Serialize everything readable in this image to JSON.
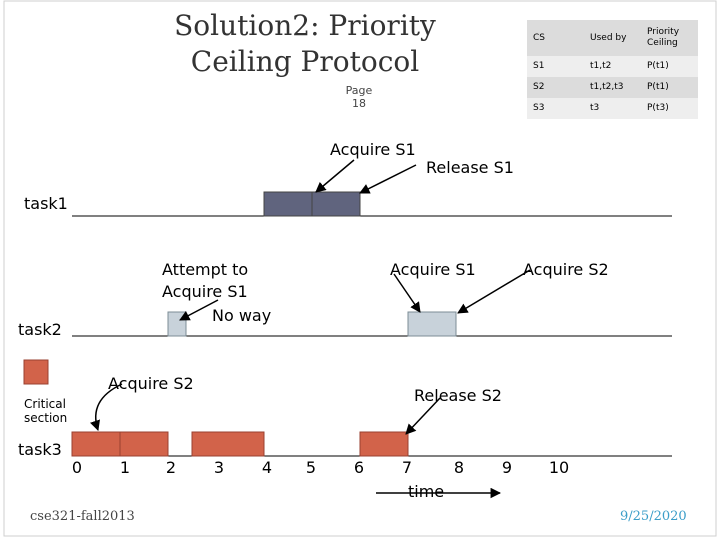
{
  "slide": {
    "title_line1": "Solution2: Priority",
    "title_line2": "Ceiling Protocol",
    "page_label": "Page",
    "page_number": "18",
    "footer_left": "cse321-fall2013",
    "footer_right": "9/25/2020"
  },
  "ceiling_table": {
    "headers": [
      "CS",
      "Used by",
      "Priority Ceiling"
    ],
    "rows": [
      [
        "S1",
        "t1,t2",
        "P(t1)"
      ],
      [
        "S2",
        "t1,t2,t3",
        "P(t1)"
      ],
      [
        "S3",
        "t3",
        "P(t3)"
      ]
    ]
  },
  "timeline": {
    "tasks": [
      "task1",
      "task2",
      "task3"
    ],
    "ticks": [
      "0",
      "1",
      "2",
      "3",
      "4",
      "5",
      "6",
      "7",
      "8",
      "9",
      "10"
    ],
    "axis_label": "time",
    "legend_label": "Critical section"
  },
  "annotations": {
    "acquire_s1_task1": "Acquire S1",
    "release_s1": "Release S1",
    "attempt_line1": "Attempt to",
    "attempt_line2": "Acquire S1",
    "no_way": "No way",
    "acquire_s1_task2": "Acquire S1",
    "acquire_s2_task2": "Acquire S2",
    "acquire_s2_task3": "Acquire S2",
    "release_s2": "Release S2"
  },
  "colors": {
    "task1_block": "#60647e",
    "task2_block": "#c8d2da",
    "critical_block": "#d2634a",
    "axis": "#000000"
  }
}
